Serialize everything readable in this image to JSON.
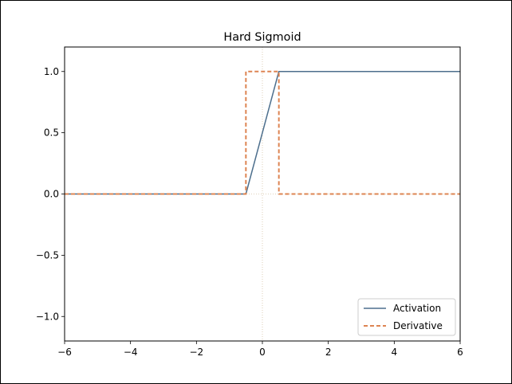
{
  "chart_data": {
    "type": "line",
    "title": "Hard Sigmoid",
    "xlabel": "",
    "ylabel": "",
    "xlim": [
      -6,
      6
    ],
    "ylim": [
      -1.2,
      1.2
    ],
    "xticks": [
      -6,
      -4,
      -2,
      0,
      2,
      4,
      6
    ],
    "xtick_labels": [
      "−6",
      "−4",
      "−2",
      "0",
      "2",
      "4",
      "6"
    ],
    "yticks": [
      -1.0,
      -0.5,
      0.0,
      0.5,
      1.0
    ],
    "ytick_labels": [
      "−1.0",
      "−0.5",
      "0.0",
      "0.5",
      "1.0"
    ],
    "grid": false,
    "reference_lines": {
      "x": 0,
      "y": 0,
      "color": "#d6c3a5"
    },
    "legend_position": "lower-right",
    "series": [
      {
        "name": "Activation",
        "color": "#4d6f8d",
        "style": "solid",
        "x": [
          -6,
          -0.5,
          0.5,
          6
        ],
        "y": [
          0,
          0,
          1,
          1
        ]
      },
      {
        "name": "Derivative",
        "color": "#dd8452",
        "style": "dashed",
        "x": [
          -6,
          -0.5,
          -0.5,
          0.5,
          0.5,
          6
        ],
        "y": [
          0,
          0,
          1,
          1,
          0,
          0
        ]
      }
    ]
  }
}
